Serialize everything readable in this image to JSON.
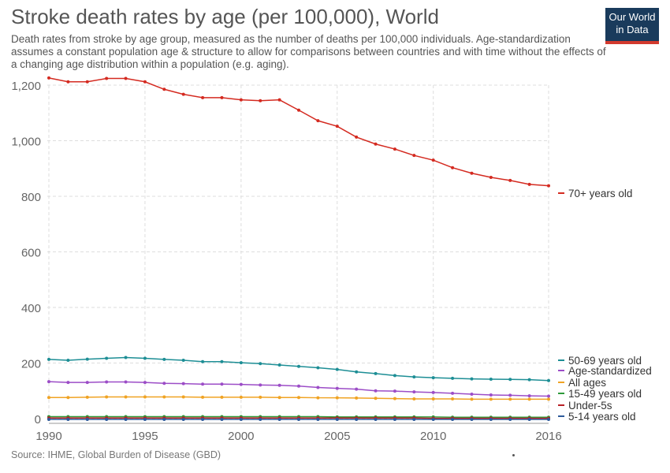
{
  "header": {
    "title": "Stroke death rates by age (per 100,000), World",
    "subtitle": "Death rates from stroke by age group, measured as the number of deaths per 100,000 individuals. Age-standardization assumes a constant population age & structure to allow for comparisons between countries and with time without the effects of a changing age distribution within a population (e.g. aging)."
  },
  "logo": {
    "line1": "Our World",
    "line2": "in Data",
    "bg": "#1a3b5c",
    "accent": "#d23a2e"
  },
  "footer": {
    "source": "Source: IHME, Global Burden of Disease (GBD)"
  },
  "chart_data": {
    "type": "line",
    "title": "Stroke death rates by age (per 100,000), World",
    "xlim": [
      1990,
      2016
    ],
    "ylim": [
      0,
      1200
    ],
    "x_ticks": [
      1990,
      1995,
      2000,
      2005,
      2010,
      2016
    ],
    "y_ticks": [
      0,
      200,
      400,
      600,
      800,
      1000,
      1200
    ],
    "y_tick_labels": [
      "0",
      "200",
      "400",
      "600",
      "800",
      "1,000",
      "1,200"
    ],
    "grid": true,
    "legend_placement": "right, labels at line ends",
    "x": [
      1990,
      1991,
      1992,
      1993,
      1994,
      1995,
      1996,
      1997,
      1998,
      1999,
      2000,
      2001,
      2002,
      2003,
      2004,
      2005,
      2006,
      2007,
      2008,
      2009,
      2010,
      2011,
      2012,
      2013,
      2014,
      2015,
      2016
    ],
    "series": [
      {
        "name": "70+ years old",
        "color": "#d42a20",
        "values": [
          1226,
          1212,
          1212,
          1224,
          1224,
          1212,
          1185,
          1167,
          1155,
          1155,
          1147,
          1144,
          1147,
          1110,
          1072,
          1052,
          1013,
          988,
          970,
          947,
          930,
          903,
          883,
          868,
          857,
          843,
          838
        ]
      },
      {
        "name": "50-69 years old",
        "color": "#1d8e95",
        "values": [
          213,
          210,
          214,
          217,
          220,
          217,
          213,
          210,
          205,
          205,
          201,
          198,
          193,
          188,
          183,
          177,
          168,
          162,
          155,
          150,
          147,
          145,
          143,
          142,
          141,
          140,
          137
        ]
      },
      {
        "name": "Age-standardized",
        "color": "#9c4dc7",
        "values": [
          133,
          130,
          130,
          132,
          132,
          130,
          127,
          126,
          124,
          124,
          123,
          121,
          120,
          117,
          112,
          109,
          106,
          100,
          99,
          96,
          94,
          91,
          88,
          85,
          84,
          82,
          81
        ]
      },
      {
        "name": "All ages",
        "color": "#f0a323",
        "values": [
          76,
          76,
          77,
          78,
          78,
          78,
          78,
          78,
          77,
          77,
          77,
          77,
          76,
          76,
          75,
          75,
          74,
          73,
          72,
          71,
          71,
          71,
          70,
          70,
          70,
          70,
          70
        ]
      },
      {
        "name": "15-49 years old",
        "color": "#2d9a3a",
        "values": [
          7,
          7,
          7,
          7,
          7,
          7,
          7,
          7,
          7,
          7,
          7,
          7,
          7,
          7,
          7,
          6,
          6,
          6,
          6,
          6,
          6,
          5,
          5,
          5,
          5,
          5,
          5
        ]
      },
      {
        "name": "Under-5s",
        "color": "#b82025",
        "values": [
          2,
          2,
          2,
          2,
          2,
          2,
          2,
          2,
          2,
          2,
          2,
          2,
          2,
          2,
          2,
          2,
          2,
          2,
          2,
          2,
          1,
          1,
          1,
          1,
          1,
          1,
          1
        ]
      },
      {
        "name": "5-14 years old",
        "color": "#2d5a9a",
        "values": [
          -3,
          -3,
          -3,
          -3,
          -3,
          -3,
          -3,
          -3,
          -3,
          -3,
          -3,
          -3,
          -3,
          -3,
          -3,
          -3,
          -3,
          -3,
          -3,
          -3,
          -3,
          -3,
          -3,
          -3,
          -3,
          -3,
          -3
        ]
      }
    ]
  }
}
